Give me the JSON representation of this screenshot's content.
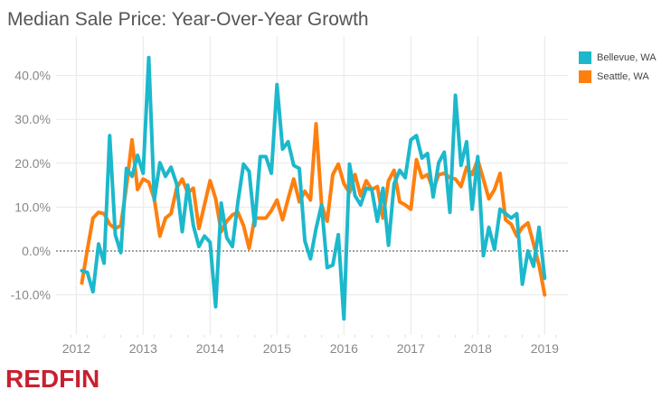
{
  "title": "Median Sale Price: Year-Over-Year Growth",
  "logo_text": "REDFIN",
  "chart_data": {
    "type": "line",
    "title": "Median Sale Price: Year-Over-Year Growth",
    "xlabel": "",
    "ylabel": "",
    "x_tick_labels": [
      "2012",
      "2013",
      "2014",
      "2015",
      "2016",
      "2017",
      "2018",
      "2019"
    ],
    "y_tick_labels": [
      "-10.0%",
      "0.0%",
      "10.0%",
      "20.0%",
      "30.0%",
      "40.0%"
    ],
    "y_ticks": [
      -10,
      0,
      10,
      20,
      30,
      40
    ],
    "ylim": [
      -15,
      47
    ],
    "xlim": [
      "2011-09",
      "2019-05"
    ],
    "grid": true,
    "zero_line": "dotted",
    "legend_position": "right",
    "x": [
      "2012-02",
      "2012-03",
      "2012-04",
      "2012-05",
      "2012-06",
      "2012-07",
      "2012-08",
      "2012-09",
      "2012-10",
      "2012-11",
      "2012-12",
      "2013-01",
      "2013-02",
      "2013-03",
      "2013-04",
      "2013-05",
      "2013-06",
      "2013-07",
      "2013-08",
      "2013-09",
      "2013-10",
      "2013-11",
      "2013-12",
      "2014-01",
      "2014-02",
      "2014-03",
      "2014-04",
      "2014-05",
      "2014-06",
      "2014-07",
      "2014-08",
      "2014-09",
      "2014-10",
      "2014-11",
      "2014-12",
      "2015-01",
      "2015-02",
      "2015-03",
      "2015-04",
      "2015-05",
      "2015-06",
      "2015-07",
      "2015-08",
      "2015-09",
      "2015-10",
      "2015-11",
      "2015-12",
      "2016-01",
      "2016-02",
      "2016-03",
      "2016-04",
      "2016-05",
      "2016-06",
      "2016-07",
      "2016-08",
      "2016-09",
      "2016-10",
      "2016-11",
      "2016-12",
      "2017-01",
      "2017-02",
      "2017-03",
      "2017-04",
      "2017-05",
      "2017-06",
      "2017-07",
      "2017-08",
      "2017-09",
      "2017-10",
      "2017-11",
      "2017-12",
      "2018-01",
      "2018-02",
      "2018-03",
      "2018-04",
      "2018-05",
      "2018-06",
      "2018-07",
      "2018-08",
      "2018-09",
      "2018-10",
      "2018-11",
      "2018-12",
      "2019-01"
    ],
    "series": [
      {
        "name": "Bellevue, WA",
        "color": "#1cb8cc",
        "values": [
          -4.5,
          -4.9,
          -9.3,
          1.6,
          -2.8,
          26.3,
          3.7,
          -0.4,
          18.8,
          17.0,
          21.8,
          17.7,
          44.1,
          11.6,
          20.1,
          17.0,
          19.1,
          15.3,
          4.4,
          15.0,
          5.8,
          1.0,
          3.4,
          2.0,
          -12.7,
          10.9,
          3.0,
          1.0,
          11.2,
          19.8,
          18.1,
          5.8,
          21.5,
          21.5,
          17.7,
          37.9,
          23.2,
          24.9,
          19.5,
          18.8,
          2.3,
          -1.8,
          5.1,
          10.5,
          -3.8,
          -3.2,
          3.7,
          -15.5,
          19.8,
          12.6,
          10.5,
          14.3,
          14.0,
          6.8,
          14.3,
          1.3,
          15.3,
          18.4,
          16.7,
          25.3,
          26.3,
          21.2,
          22.2,
          12.3,
          20.1,
          22.5,
          8.8,
          35.5,
          19.5,
          24.9,
          9.5,
          21.5,
          -1.1,
          5.4,
          0.3,
          9.5,
          8.5,
          7.5,
          8.5,
          -7.6,
          0.0,
          -3.5,
          5.4,
          -6.2
        ]
      },
      {
        "name": "Seattle, WA",
        "color": "#ff7f0e",
        "values": [
          -7.3,
          0.3,
          7.5,
          8.8,
          8.5,
          6.1,
          5.1,
          5.8,
          14.7,
          25.3,
          14.0,
          16.4,
          15.7,
          11.9,
          3.4,
          7.5,
          8.5,
          14.3,
          16.4,
          13.3,
          14.3,
          5.1,
          10.5,
          16.0,
          11.9,
          4.4,
          6.8,
          8.2,
          8.8,
          5.8,
          0.6,
          7.5,
          7.5,
          7.5,
          9.2,
          11.6,
          7.1,
          11.9,
          16.4,
          11.2,
          13.6,
          11.6,
          29.0,
          10.5,
          6.8,
          17.4,
          19.8,
          15.3,
          13.3,
          17.4,
          12.6,
          16.0,
          14.0,
          14.7,
          7.5,
          16.0,
          18.4,
          11.2,
          10.5,
          9.5,
          20.8,
          16.7,
          17.4,
          14.0,
          17.4,
          17.7,
          16.7,
          16.4,
          14.7,
          19.1,
          17.4,
          20.8,
          16.4,
          11.9,
          14.0,
          17.7,
          7.1,
          6.1,
          3.4,
          5.4,
          6.4,
          1.6,
          -3.2,
          -10.0
        ]
      }
    ]
  }
}
